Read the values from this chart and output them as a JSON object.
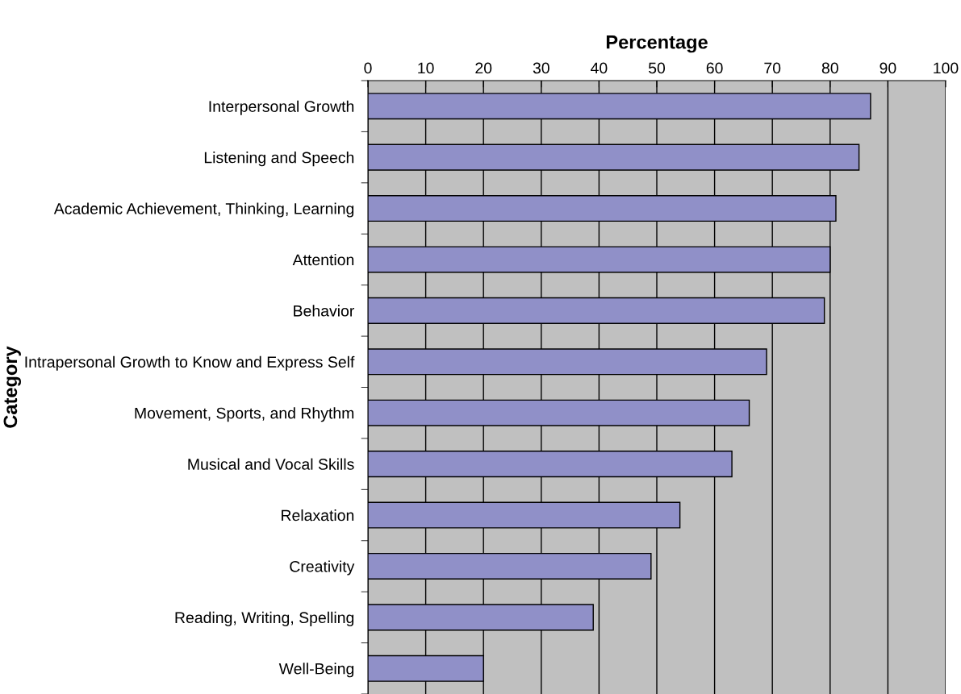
{
  "chart_data": {
    "type": "bar",
    "orientation": "horizontal",
    "xlabel": "Percentage",
    "ylabel": "Category",
    "categories": [
      "Interpersonal Growth",
      "Listening and Speech",
      "Academic Achievement, Thinking, Learning",
      "Attention",
      "Behavior",
      "Intrapersonal Growth to Know and Express Self",
      "Movement, Sports, and Rhythm",
      "Musical and Vocal Skills",
      "Relaxation",
      "Creativity",
      "Reading, Writing, Spelling",
      "Well-Being"
    ],
    "values": [
      87,
      85,
      81,
      80,
      79,
      69,
      66,
      63,
      54,
      49,
      39,
      20
    ],
    "color": "#9090c8",
    "xlim": [
      0,
      100
    ],
    "xticks": [
      0,
      10,
      20,
      30,
      40,
      50,
      60,
      70,
      80,
      90,
      100
    ],
    "grid": "x"
  }
}
